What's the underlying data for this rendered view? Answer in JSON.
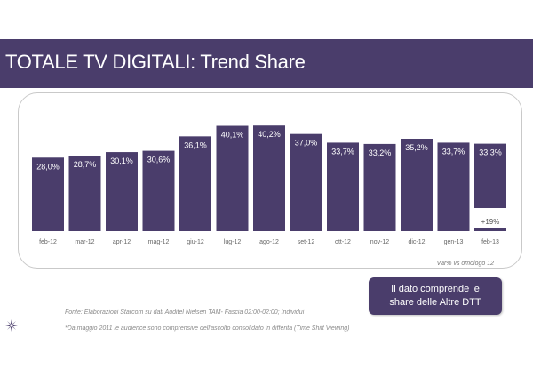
{
  "header": {
    "title": "TOTALE TV DIGITALI: Trend Share"
  },
  "chart_data": {
    "type": "bar",
    "categories": [
      "feb-12",
      "mar-12",
      "apr-12",
      "mag-12",
      "giu-12",
      "lug-12",
      "ago-12",
      "set-12",
      "ott-12",
      "nov-12",
      "dic-12",
      "gen-13",
      "feb-13"
    ],
    "values": [
      28.0,
      28.7,
      30.1,
      30.6,
      36.1,
      40.1,
      40.2,
      37.0,
      33.7,
      33.2,
      35.2,
      33.7,
      33.3
    ],
    "data_labels": [
      "28,0%",
      "28,7%",
      "30,1%",
      "30,6%",
      "36,1%",
      "40,1%",
      "40,2%",
      "37,0%",
      "33,7%",
      "33,2%",
      "35,2%",
      "33,7%",
      "33,3%"
    ],
    "bar_annotation": {
      "category": "feb-13",
      "label": "+19%"
    },
    "bar_color": "#4a3d6b",
    "title": "",
    "xlabel": "",
    "ylabel": "",
    "ylim": [
      0,
      44
    ],
    "grid": false,
    "footnote": "Var% vs omologo 12"
  },
  "callout": {
    "text": "Il dato comprende le share delle Altre DTT"
  },
  "notes": {
    "source": "Fonte: Elaborazioni Starcom su dati Auditel Nielsen TAM- Fascia 02:00-02:00; Individui",
    "disclaimer": "*Da maggio 2011 le audience sono comprensive dell'ascolto consolidato in differita (Time Shift Viewing)"
  },
  "colors": {
    "brand": "#4a3d6b",
    "text_gray": "#8a8a8a"
  },
  "icons": {
    "logo": "starburst-logo-icon"
  }
}
